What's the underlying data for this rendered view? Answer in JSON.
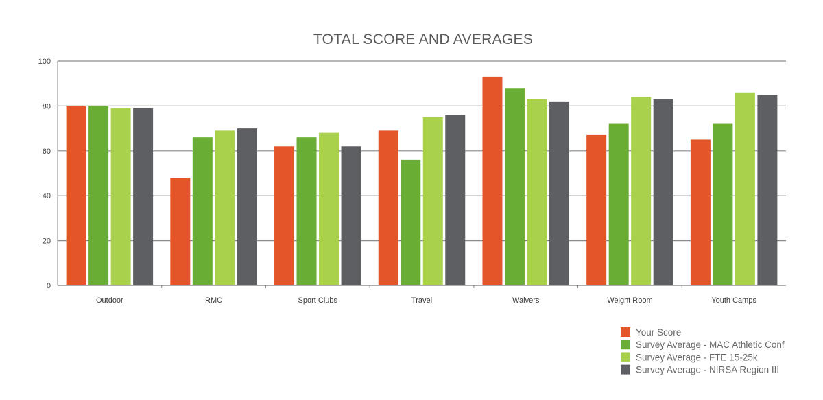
{
  "chart_data": {
    "type": "bar",
    "title": "TOTAL SCORE AND AVERAGES",
    "xlabel": "",
    "ylabel": "",
    "ylim": [
      0,
      100
    ],
    "yticks": [
      0,
      20,
      40,
      60,
      80,
      100
    ],
    "grid": true,
    "legend_position": "bottom-right",
    "categories": [
      "Outdoor",
      "RMC",
      "Sport Clubs",
      "Travel",
      "Waivers",
      "Weight Room",
      "Youth Camps"
    ],
    "series": [
      {
        "name": "Your Score",
        "color": "#e4552a",
        "values": [
          80,
          48,
          62,
          69,
          93,
          67,
          65
        ]
      },
      {
        "name": "Survey Average - MAC Athletic Conf",
        "color": "#6aad34",
        "values": [
          80,
          66,
          66,
          56,
          88,
          72,
          72
        ]
      },
      {
        "name": "Survey Average - FTE 15-25k",
        "color": "#a9d14c",
        "values": [
          79,
          69,
          68,
          75,
          83,
          84,
          86
        ]
      },
      {
        "name": "Survey Average - NIRSA Region III",
        "color": "#5e5f63",
        "values": [
          79,
          70,
          62,
          76,
          82,
          83,
          85
        ]
      }
    ]
  }
}
